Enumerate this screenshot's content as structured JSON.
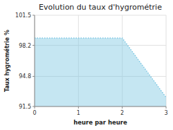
{
  "chart_data": {
    "type": "area",
    "title": "Evolution du taux d'hygrométrie",
    "xlabel": "heure par heure",
    "ylabel": "Taux hygrométrie %",
    "x": [
      0,
      0.5,
      2.0,
      3.0
    ],
    "values": [
      99.0,
      99.0,
      99.0,
      92.5
    ],
    "xlim": [
      0,
      3
    ],
    "ylim": [
      91.5,
      101.5
    ],
    "xticks": [
      0,
      1,
      2,
      3
    ],
    "yticks": [
      91.5,
      94.8,
      98.2,
      101.5
    ],
    "grid": true,
    "color": "#7ec8e3",
    "line_style": "dotted"
  }
}
